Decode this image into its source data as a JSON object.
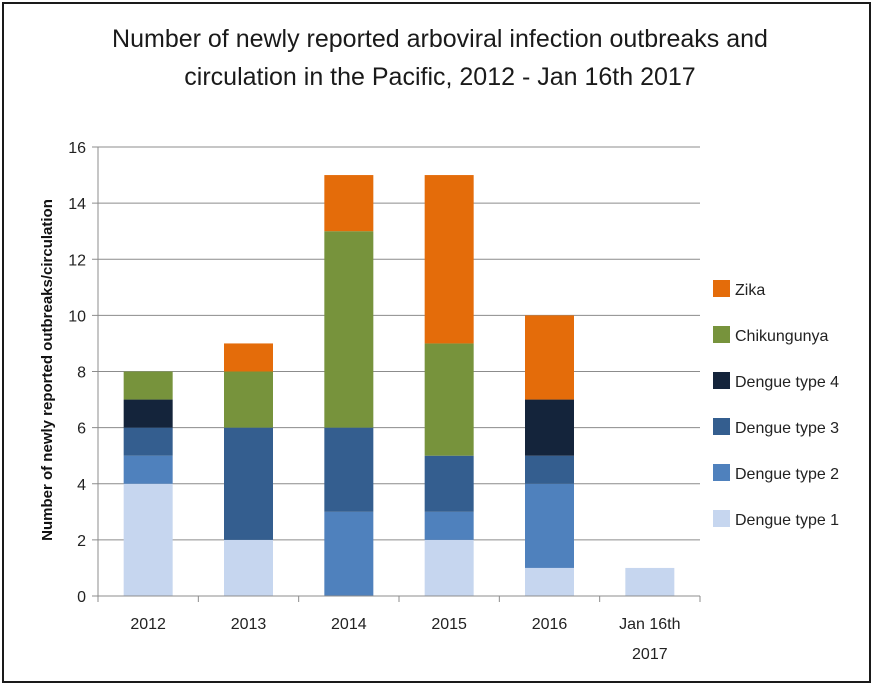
{
  "chart_data": {
    "type": "bar",
    "stacked": true,
    "title_line1": "Number of newly reported arboviral infection outbreaks and",
    "title_line2": "circulation in the Pacific,  2012 - Jan 16th 2017",
    "ylabel": "Number of  newly reported outbreaks/circulation",
    "ylim": [
      0,
      16
    ],
    "yticks": [
      0,
      2,
      4,
      6,
      8,
      10,
      12,
      14,
      16
    ],
    "grid": true,
    "legend_position": "right",
    "categories": [
      "2012",
      "2013",
      "2014",
      "2015",
      "2016",
      "Jan 16th 2017"
    ],
    "category_labels": [
      [
        "2012"
      ],
      [
        "2013"
      ],
      [
        "2014"
      ],
      [
        "2015"
      ],
      [
        "2016"
      ],
      [
        "Jan 16th",
        "2017"
      ]
    ],
    "series": [
      {
        "name": "Dengue type 1",
        "color": "#c6d6ef",
        "values": [
          4,
          2,
          0,
          2,
          1,
          1
        ]
      },
      {
        "name": "Dengue type 2",
        "color": "#4f81bd",
        "values": [
          1,
          0,
          3,
          1,
          3,
          0
        ]
      },
      {
        "name": "Dengue type 3",
        "color": "#345e8f",
        "values": [
          1,
          4,
          3,
          2,
          1,
          0
        ]
      },
      {
        "name": "Dengue type 4",
        "color": "#14243b",
        "values": [
          1,
          0,
          0,
          0,
          2,
          0
        ]
      },
      {
        "name": "Chikungunya",
        "color": "#77933c",
        "values": [
          1,
          2,
          7,
          4,
          0,
          0
        ]
      },
      {
        "name": "Zika",
        "color": "#e46c0a",
        "values": [
          0,
          1,
          2,
          6,
          3,
          0
        ]
      }
    ]
  }
}
